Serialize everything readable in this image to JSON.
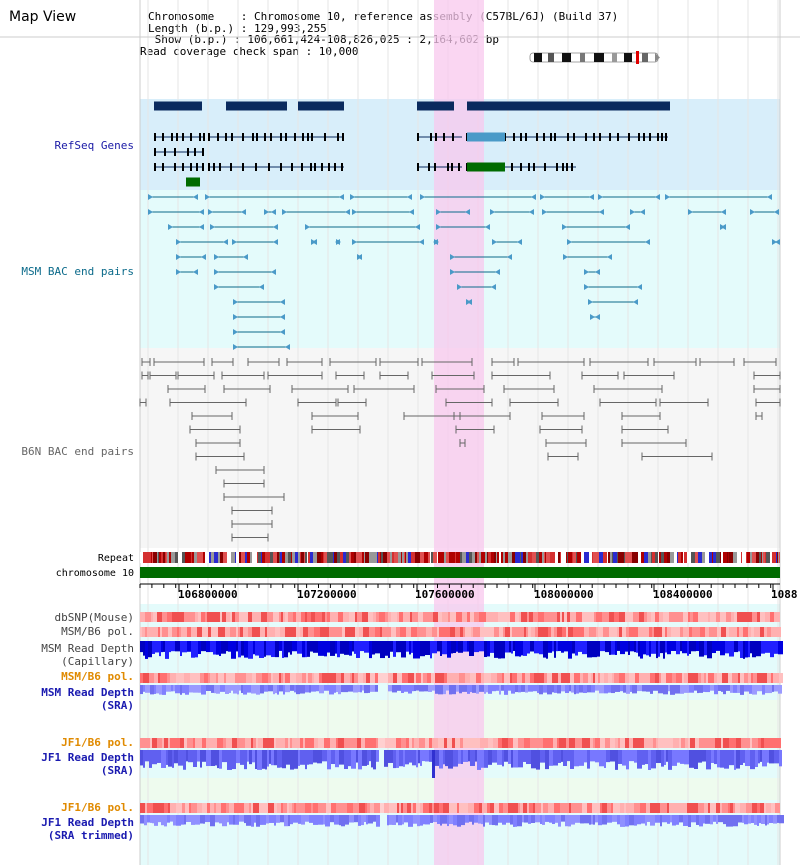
{
  "title": "Map View",
  "info": {
    "chromosome": "Chromosome    : Chromosome 10, reference assembly (C57BL/6J) (Build 37)",
    "length": "Length (b.p.) : 129,993,255",
    "show": " Show (b.p.) : 106,661,424-108,826,025 : 2,164,602 bp",
    "span": "Read coverage check span : 10,000"
  },
  "tracks": {
    "refseq": "RefSeq Genes",
    "msm_bac": "MSM BAC end pairs",
    "b6n_bac": "B6N BAC end pairs",
    "repeat": "Repeat",
    "chromosome": "chromosome 10"
  },
  "ruler": {
    "ticks": [
      "106800000",
      "107200000",
      "107600000",
      "108000000",
      "108400000",
      "1088"
    ]
  },
  "lower_tracks": {
    "dbsnp": "dbSNP(Mouse)",
    "msm_pol_cap": "MSM/B6 pol.",
    "msm_depth_cap_1": "MSM Read Depth",
    "msm_depth_cap_2": "(Capillary)",
    "msm_pol_sra": "MSM/B6 pol.",
    "msm_depth_sra_1": "MSM Read Depth",
    "msm_depth_sra_2": "(SRA)",
    "jf1_pol": "JF1/B6 pol.",
    "jf1_depth_1": "JF1 Read Depth",
    "jf1_depth_2": "(SRA)",
    "jf1_pol_trim": "JF1/B6 pol.",
    "jf1_depth_trim_1": "JF1 Read Depth",
    "jf1_depth_trim_2": "(SRA trimmed)"
  },
  "colors": {
    "refseq_label": "#1a1aa6",
    "msm_label": "#0b6a8a",
    "b6n_label": "#666666",
    "orange_label": "#e08a00",
    "blue_label": "#1a1ab0",
    "highlight": "#f8c8ee",
    "refseq_bg": "#d8eefa",
    "cyan_bg": "#e4fbfb"
  }
}
